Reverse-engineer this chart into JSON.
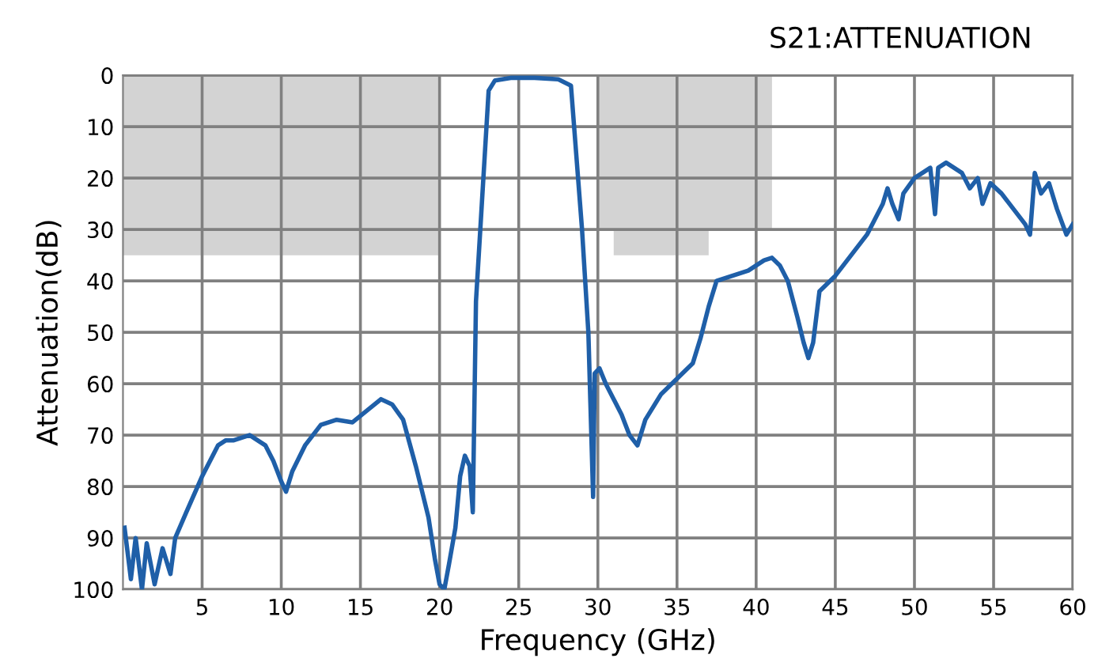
{
  "chart_data": {
    "type": "line",
    "title": "S21:ATTENUATION",
    "xlabel": "Frequency (GHz)",
    "ylabel": "Attenuation(dB)",
    "xlim": [
      0,
      60
    ],
    "xticks": [
      5,
      10,
      15,
      20,
      25,
      30,
      35,
      40,
      45,
      50,
      55,
      60
    ],
    "ylim": [
      100,
      0
    ],
    "yticks": [
      0,
      10,
      20,
      30,
      40,
      50,
      60,
      70,
      80,
      90,
      100
    ],
    "grid": true,
    "line_style": "solid",
    "series": [
      {
        "type": "area",
        "color": "#d3d3d3",
        "x": [
          0,
          20
        ],
        "values": [
          35,
          35
        ]
      },
      {
        "type": "area",
        "color": "#d3d3d3",
        "x": [
          30,
          31,
          31,
          37,
          37,
          41
        ],
        "values": [
          30,
          30,
          35,
          35,
          30,
          30
        ]
      },
      {
        "color": "#1f5fa8",
        "x": [
          0.1,
          0.5,
          0.8,
          1.2,
          1.5,
          2,
          2.5,
          3,
          3.3,
          4,
          5,
          6,
          6.5,
          7,
          8,
          9,
          9.5,
          10,
          10.3,
          10.7,
          11.5,
          12.5,
          13.5,
          14.5,
          15.5,
          16.3,
          17,
          17.7,
          18.5,
          19.3,
          19.7,
          20,
          20.3,
          20.6,
          21,
          21.3,
          21.6,
          21.9,
          22.1,
          22.3,
          23.1,
          23.5,
          24.5,
          26,
          27.5,
          28.3,
          29,
          29.4,
          29.7,
          29.8,
          30.1,
          30.5,
          31,
          31.5,
          32,
          32.5,
          33,
          34,
          35,
          36,
          36.5,
          37,
          37.5,
          38.5,
          39.5,
          40.5,
          41,
          41.5,
          42,
          42.6,
          43,
          43.3,
          43.6,
          44,
          45,
          46,
          47,
          48,
          48.3,
          48.6,
          49,
          49.3,
          50,
          51,
          51.3,
          51.5,
          52,
          53,
          53.5,
          54,
          54.3,
          54.8,
          55.5,
          56,
          57,
          57.3,
          57.6,
          58,
          58.5,
          59,
          59.6,
          60
        ],
        "values": [
          88,
          98,
          90,
          100,
          91,
          99,
          92,
          97,
          90,
          85,
          78,
          72,
          71,
          71,
          70,
          72,
          75,
          79,
          81,
          77,
          72,
          68,
          67,
          67.5,
          65,
          63,
          64,
          67,
          76,
          86,
          94,
          99,
          100,
          95,
          88,
          78,
          74,
          76,
          85,
          44,
          3,
          1,
          0.5,
          0.5,
          0.8,
          2,
          30,
          50,
          82,
          58,
          57,
          60,
          63,
          66,
          70,
          72,
          67,
          62,
          59,
          56,
          51,
          45,
          40,
          39,
          38,
          36,
          35.5,
          37,
          40,
          47,
          52,
          55,
          52,
          42,
          39,
          35,
          31,
          25,
          22,
          25,
          28,
          23,
          20,
          18,
          27,
          18,
          17,
          19,
          22,
          20,
          25,
          21,
          23,
          25,
          29,
          31,
          19,
          23,
          21,
          26,
          31,
          29
        ]
      }
    ]
  }
}
